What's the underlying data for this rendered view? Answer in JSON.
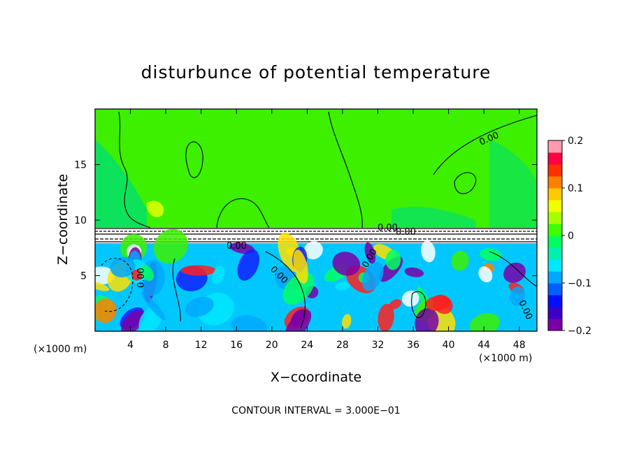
{
  "chart_data": {
    "type": "heatmap",
    "title": "disturbunce of potential temperature",
    "xlabel": "X−coordinate",
    "ylabel": "Z−coordinate",
    "x_unit_left": "(×1000 m)",
    "x_unit_right": "(×1000 m)",
    "xlim": [
      0,
      50
    ],
    "ylim": [
      0,
      20
    ],
    "x_ticks": [
      4,
      8,
      12,
      16,
      20,
      24,
      28,
      32,
      36,
      40,
      44,
      48
    ],
    "y_ticks": [
      5,
      10,
      15
    ],
    "colorbar": {
      "range": [
        -0.2,
        0.2
      ],
      "ticks": [
        0.2,
        0.1,
        0,
        -0.1,
        -0.2
      ],
      "tick_labels": [
        "0.2",
        "0.1",
        "0",
        "−0.1",
        "−0.2"
      ],
      "colors": [
        "#7a00a8",
        "#3a00c8",
        "#0010ff",
        "#0060ff",
        "#00a8ff",
        "#00e8ff",
        "#00f0b0",
        "#00ff60",
        "#40ff00",
        "#a8ff00",
        "#f0ff00",
        "#ffc800",
        "#ff8000",
        "#ff3000",
        "#ff0040",
        "#ff9ab0"
      ]
    },
    "contour_labels": [
      "0.00",
      "0.00",
      "0.00",
      "0.00",
      "0.00",
      "0.00",
      "0.00",
      "0.00"
    ],
    "contour_interval_text": "CONTOUR INTERVAL = 3.000E−01"
  }
}
